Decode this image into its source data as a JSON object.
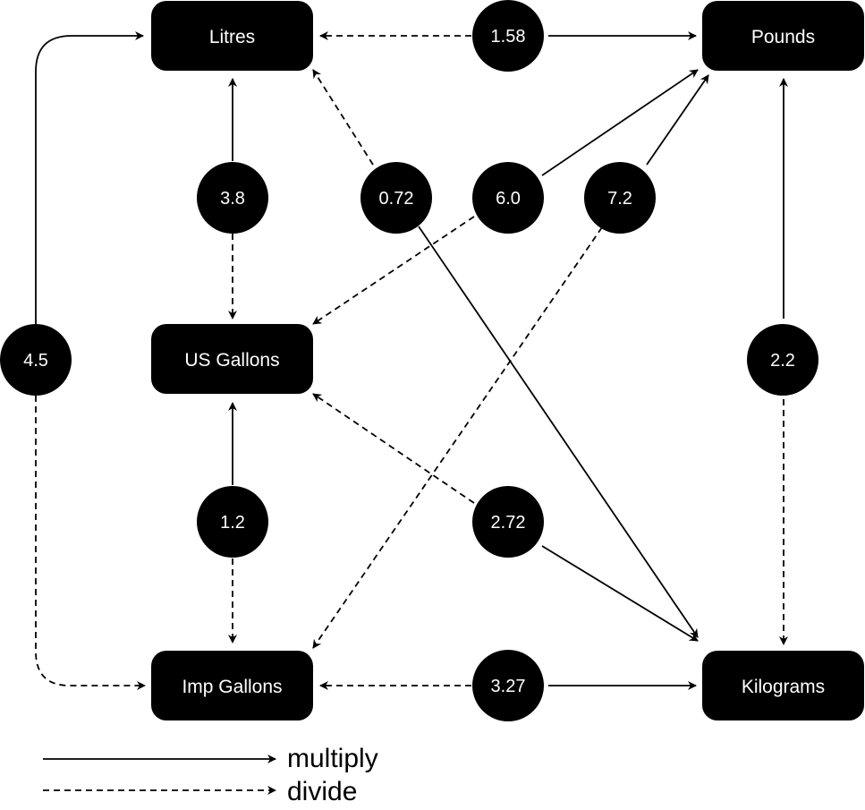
{
  "units": {
    "litres": "Litres",
    "pounds": "Pounds",
    "us_gallons": "US Gallons",
    "imp_gallons": "Imp Gallons",
    "kilograms": "Kilograms"
  },
  "factors": {
    "litres_pounds": "1.58",
    "litres_usgal": "3.8",
    "litres_kilograms": "0.72",
    "usgal_pounds": "6.0",
    "impgal_pounds": "7.2",
    "litres_impgal": "4.5",
    "kilograms_pounds": "2.2",
    "usgal_impgal": "1.2",
    "usgal_kilograms": "2.72",
    "impgal_kilograms": "3.27"
  },
  "legend": {
    "multiply": "multiply",
    "divide": "divide"
  },
  "colors": {
    "node_fill": "#000000",
    "text": "#ffffff",
    "line": "#000000"
  }
}
